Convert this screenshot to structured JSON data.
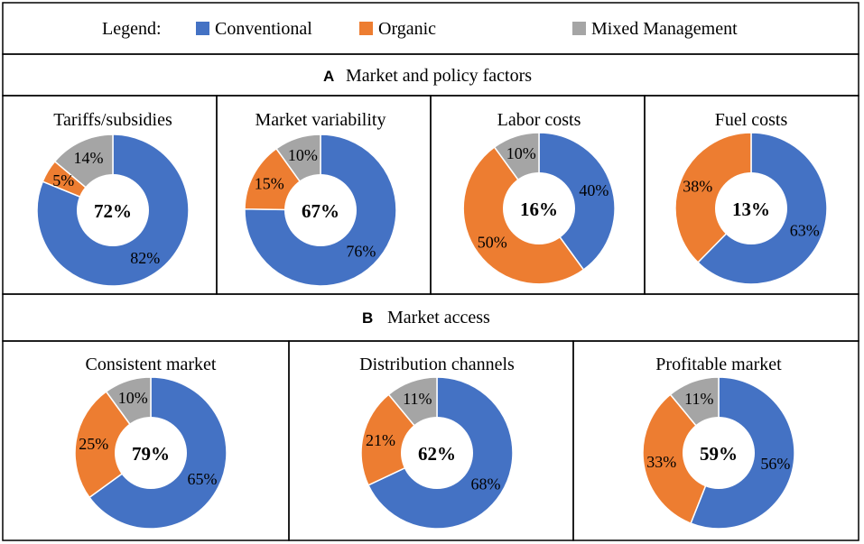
{
  "legend": {
    "label": "Legend:",
    "items": [
      {
        "name": "Conventional",
        "color": "#4472C4"
      },
      {
        "name": "Organic",
        "color": "#ED7D31"
      },
      {
        "name": "Mixed Management",
        "color": "#A5A5A5"
      }
    ]
  },
  "sections": [
    {
      "letter": "A",
      "title": "Market and policy factors"
    },
    {
      "letter": "B",
      "title": "Market access"
    }
  ],
  "chart_data": [
    {
      "type": "pie",
      "title": "Tariffs/subsidies",
      "center_value": "72%",
      "categories": [
        "Conventional",
        "Organic",
        "Mixed Management"
      ],
      "values": [
        82,
        5,
        14
      ],
      "labels": [
        "82%",
        "5%",
        "14%"
      ]
    },
    {
      "type": "pie",
      "title": "Market variability",
      "center_value": "67%",
      "categories": [
        "Conventional",
        "Organic",
        "Mixed Management"
      ],
      "values": [
        76,
        15,
        10
      ],
      "labels": [
        "76%",
        "15%",
        "10%"
      ]
    },
    {
      "type": "pie",
      "title": "Labor costs",
      "center_value": "16%",
      "categories": [
        "Conventional",
        "Organic",
        "Mixed Management"
      ],
      "values": [
        40,
        50,
        10
      ],
      "labels": [
        "40%",
        "50%",
        "10%"
      ]
    },
    {
      "type": "pie",
      "title": "Fuel costs",
      "center_value": "13%",
      "categories": [
        "Conventional",
        "Organic"
      ],
      "values": [
        63,
        38
      ],
      "labels": [
        "63%",
        "38%"
      ]
    },
    {
      "type": "pie",
      "title": "Consistent market",
      "center_value": "79%",
      "categories": [
        "Conventional",
        "Organic",
        "Mixed Management"
      ],
      "values": [
        65,
        25,
        10
      ],
      "labels": [
        "65%",
        "25%",
        "10%"
      ]
    },
    {
      "type": "pie",
      "title": "Distribution channels",
      "center_value": "62%",
      "categories": [
        "Conventional",
        "Organic",
        "Mixed Management"
      ],
      "values": [
        68,
        21,
        11
      ],
      "labels": [
        "68%",
        "21%",
        "11%"
      ]
    },
    {
      "type": "pie",
      "title": "Profitable market",
      "center_value": "59%",
      "categories": [
        "Conventional",
        "Organic",
        "Mixed Management"
      ],
      "values": [
        56,
        33,
        11
      ],
      "labels": [
        "56%",
        "33%",
        "11%"
      ]
    }
  ]
}
